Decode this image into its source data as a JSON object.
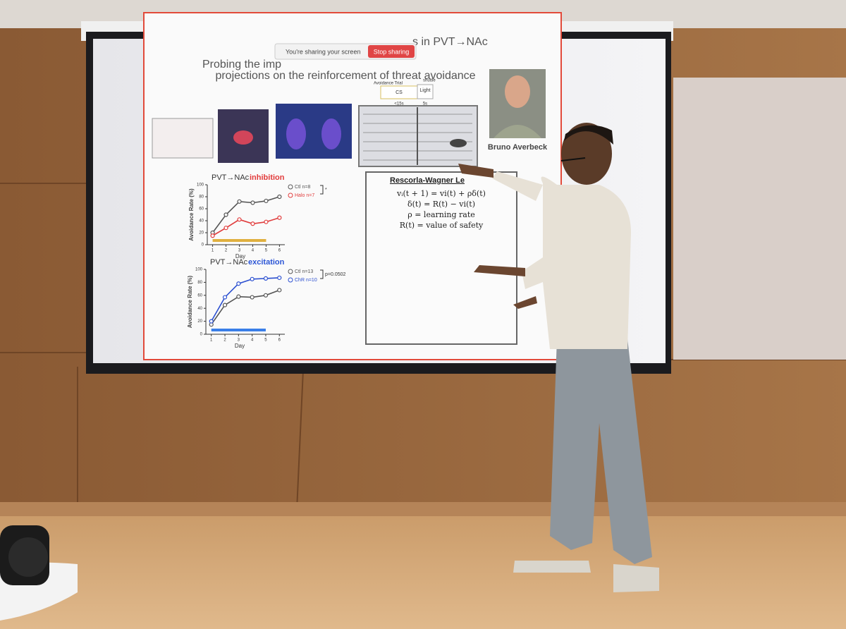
{
  "sharing_bar": {
    "message": "You're sharing your screen",
    "button": "Stop sharing"
  },
  "slide": {
    "title_start": "Probing the imp",
    "title_end": "s in PVT→NAc",
    "title_line2": "projections on the reinforcement of threat avoidance",
    "photo_caption": "Bruno Averbeck",
    "trial_diagram": {
      "label": "Avoidance Trial",
      "shuttle": "shuttle",
      "cs": "CS",
      "light": "Light",
      "cs_duration": "<15s",
      "light_duration": "5s"
    },
    "charts": [
      {
        "type": "line",
        "title_prefix": "PVT→NAc",
        "title_highlight": "inhibition",
        "highlight_color": "#e23a3a",
        "ylabel": "Avoidance Rate (%)",
        "xlabel": "Day",
        "x": [
          1,
          2,
          3,
          4,
          5,
          6
        ],
        "series": [
          {
            "name": "Ctl n=8",
            "color": "#555555",
            "values": [
              20,
              50,
              72,
              70,
              73,
              80
            ]
          },
          {
            "name": "Halo n=7",
            "color": "#e03c3c",
            "values": [
              15,
              28,
              42,
              35,
              38,
              45
            ]
          }
        ],
        "significance": "*",
        "stim_span": [
          1,
          5
        ],
        "stim_color": "#e0b040",
        "xlim": [
          0.6,
          6.4
        ],
        "xticks": [
          1,
          2,
          3,
          4,
          5,
          6
        ],
        "ylim": [
          0,
          100
        ],
        "yticks": [
          0,
          20,
          40,
          60,
          80,
          100
        ]
      },
      {
        "type": "line",
        "title_prefix": "PVT→NAc",
        "title_highlight": "excitation",
        "highlight_color": "#2b55d6",
        "ylabel": "Avoidance Rate (%)",
        "xlabel": "Day",
        "x": [
          1,
          2,
          3,
          4,
          5,
          6
        ],
        "series": [
          {
            "name": "Ctl n=13",
            "color": "#555555",
            "values": [
              15,
              45,
              58,
              57,
              60,
              68
            ]
          },
          {
            "name": "ChR n=10",
            "color": "#2b4fd0",
            "values": [
              20,
              57,
              78,
              85,
              86,
              87
            ]
          }
        ],
        "significance": "p=0.0502",
        "stim_span": [
          1,
          5
        ],
        "stim_color": "#3a7ee8",
        "xlim": [
          0.6,
          6.4
        ],
        "xticks": [
          1,
          2,
          3,
          4,
          5,
          6
        ],
        "ylim": [
          0,
          100
        ],
        "yticks": [
          0,
          20,
          40,
          60,
          80,
          100
        ]
      }
    ],
    "model": {
      "title": "Rescorla-Wagner Le",
      "equations": [
        "vᵢ(t + 1) = vi(t) + ρδ(t)",
        "δ(t) = R(t) − vi(t)",
        "ρ = learning rate",
        "R(t) = value of safety"
      ]
    }
  }
}
